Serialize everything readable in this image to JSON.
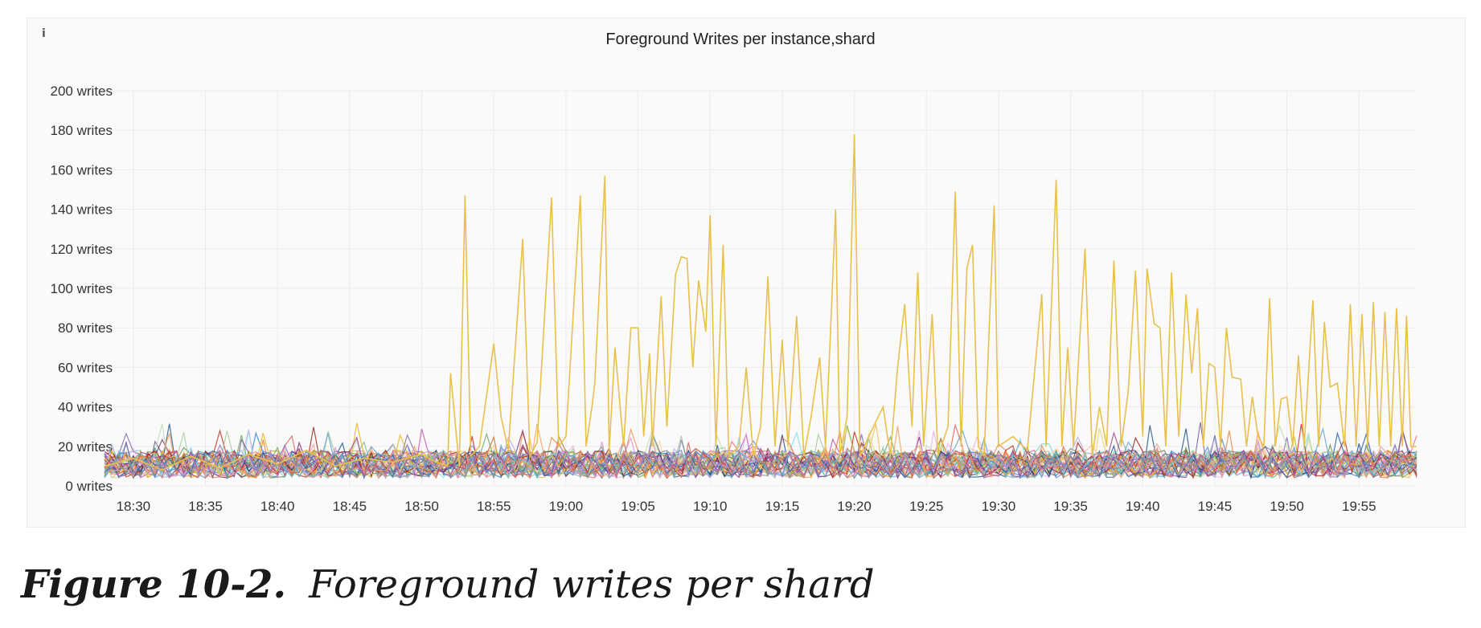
{
  "panel": {
    "info_icon": "info-icon"
  },
  "chart_data": {
    "type": "line",
    "title": "Foreground Writes per instance,shard",
    "xlabel": "",
    "ylabel": "",
    "y_unit": "writes",
    "ylim": [
      0,
      200
    ],
    "yticks": [
      "0 writes",
      "20 writes",
      "40 writes",
      "60 writes",
      "80 writes",
      "100 writes",
      "120 writes",
      "140 writes",
      "160 writes",
      "180 writes",
      "200 writes"
    ],
    "xlim": [
      "18:28",
      "19:59"
    ],
    "xticks": [
      "18:30",
      "18:35",
      "18:40",
      "18:45",
      "18:50",
      "18:55",
      "19:00",
      "19:05",
      "19:10",
      "19:15",
      "19:20",
      "19:25",
      "19:30",
      "19:35",
      "19:40",
      "19:45",
      "19:50",
      "19:55"
    ],
    "grid": true,
    "legend": "none",
    "highlight_series": {
      "color": "#e8c14a",
      "points": [
        [
          "18:28",
          10
        ],
        [
          "18:30",
          14
        ],
        [
          "18:32",
          8
        ],
        [
          "18:34",
          15
        ],
        [
          "18:36",
          9
        ],
        [
          "18:38",
          16
        ],
        [
          "18:40",
          11
        ],
        [
          "18:42",
          18
        ],
        [
          "18:44",
          10
        ],
        [
          "18:46",
          14
        ],
        [
          "18:48",
          12
        ],
        [
          "18:50",
          16
        ],
        [
          "18:51",
          12
        ],
        [
          "18:51.8",
          10
        ],
        [
          "18:52",
          57
        ],
        [
          "18:52.6",
          10
        ],
        [
          "18:53",
          147
        ],
        [
          "18:53.4",
          15
        ],
        [
          "18:54",
          20
        ],
        [
          "18:55",
          72
        ],
        [
          "18:55.5",
          35
        ],
        [
          "18:56",
          18
        ],
        [
          "18:57",
          125
        ],
        [
          "18:57.5",
          15
        ],
        [
          "18:58",
          22
        ],
        [
          "18:59",
          146
        ],
        [
          "18:59.5",
          20
        ],
        [
          "19:00",
          25
        ],
        [
          "19:01",
          147
        ],
        [
          "19:01.4",
          20
        ],
        [
          "19:01.8",
          40
        ],
        [
          "19:02",
          52
        ],
        [
          "19:02.7",
          157
        ],
        [
          "19:03",
          18
        ],
        [
          "19:03.4",
          70
        ],
        [
          "19:04",
          20
        ],
        [
          "19:04.5",
          80
        ],
        [
          "19:05",
          80
        ],
        [
          "19:05.4",
          25
        ],
        [
          "19:05.8",
          67
        ],
        [
          "19:06",
          20
        ],
        [
          "19:06.6",
          96
        ],
        [
          "19:07",
          30
        ],
        [
          "19:07.6",
          107
        ],
        [
          "19:08",
          116
        ],
        [
          "19:08.4",
          115
        ],
        [
          "19:08.8",
          60
        ],
        [
          "19:09.2",
          104
        ],
        [
          "19:09.7",
          78
        ],
        [
          "19:10",
          137
        ],
        [
          "19:10.4",
          20
        ],
        [
          "19:10.9",
          122
        ],
        [
          "19:11.3",
          15
        ],
        [
          "19:12",
          20
        ],
        [
          "19:12.5",
          60
        ],
        [
          "19:13",
          15
        ],
        [
          "19:13.5",
          30
        ],
        [
          "19:14",
          106
        ],
        [
          "19:14.5",
          20
        ],
        [
          "19:15",
          74
        ],
        [
          "19:15.4",
          20
        ],
        [
          "19:16",
          86
        ],
        [
          "19:16.5",
          15
        ],
        [
          "19:17",
          35
        ],
        [
          "19:17.6",
          65
        ],
        [
          "19:18",
          20
        ],
        [
          "19:18.3",
          70
        ],
        [
          "19:18.7",
          140
        ],
        [
          "19:19",
          15
        ],
        [
          "19:19.5",
          35
        ],
        [
          "19:20",
          178
        ],
        [
          "19:20.4",
          15
        ],
        [
          "19:21",
          25
        ],
        [
          "19:22",
          40
        ],
        [
          "19:22.5",
          15
        ],
        [
          "19:23",
          60
        ],
        [
          "19:23.5",
          92
        ],
        [
          "19:24",
          30
        ],
        [
          "19:24.4",
          108
        ],
        [
          "19:24.8",
          20
        ],
        [
          "19:25.4",
          87
        ],
        [
          "19:25.8",
          15
        ],
        [
          "19:26.5",
          30
        ],
        [
          "19:27",
          149
        ],
        [
          "19:27.4",
          20
        ],
        [
          "19:27.8",
          110
        ],
        [
          "19:28.2",
          122
        ],
        [
          "19:28.6",
          20
        ],
        [
          "19:29",
          15
        ],
        [
          "19:29.7",
          142
        ],
        [
          "19:30",
          20
        ],
        [
          "19:31",
          25
        ],
        [
          "19:32",
          18
        ],
        [
          "19:33",
          97
        ],
        [
          "19:33.3",
          20
        ],
        [
          "19:34",
          155
        ],
        [
          "19:34.4",
          20
        ],
        [
          "19:34.8",
          70
        ],
        [
          "19:35.2",
          20
        ],
        [
          "19:36",
          120
        ],
        [
          "19:36.5",
          15
        ],
        [
          "19:37",
          40
        ],
        [
          "19:37.5",
          20
        ],
        [
          "19:38",
          114
        ],
        [
          "19:38.5",
          20
        ],
        [
          "19:39",
          48
        ],
        [
          "19:39.5",
          109
        ],
        [
          "19:40",
          25
        ],
        [
          "19:40.3",
          110
        ],
        [
          "19:40.8",
          82
        ],
        [
          "19:41.2",
          80
        ],
        [
          "19:41.6",
          20
        ],
        [
          "19:42",
          108
        ],
        [
          "19:42.5",
          25
        ],
        [
          "19:43",
          97
        ],
        [
          "19:43.4",
          57
        ],
        [
          "19:43.8",
          90
        ],
        [
          "19:44.2",
          20
        ],
        [
          "19:44.6",
          62
        ],
        [
          "19:45",
          60
        ],
        [
          "19:45.4",
          20
        ],
        [
          "19:45.8",
          80
        ],
        [
          "19:46.2",
          55
        ],
        [
          "19:46.8",
          54
        ],
        [
          "19:47.2",
          20
        ],
        [
          "19:47.6",
          45
        ],
        [
          "19:48",
          25
        ],
        [
          "19:48.4",
          20
        ],
        [
          "19:48.8",
          95
        ],
        [
          "19:49.2",
          20
        ],
        [
          "19:49.6",
          44
        ],
        [
          "19:50",
          45
        ],
        [
          "19:50.4",
          20
        ],
        [
          "19:50.8",
          66
        ],
        [
          "19:51.2",
          20
        ],
        [
          "19:51.8",
          94
        ],
        [
          "19:52.2",
          20
        ],
        [
          "19:52.6",
          83
        ],
        [
          "19:53",
          50
        ],
        [
          "19:53.5",
          52
        ],
        [
          "19:54",
          20
        ],
        [
          "19:54.4",
          92
        ],
        [
          "19:54.8",
          20
        ],
        [
          "19:55.2",
          87
        ],
        [
          "19:55.6",
          20
        ],
        [
          "19:56",
          93
        ],
        [
          "19:56.4",
          20
        ],
        [
          "19:56.8",
          88
        ],
        [
          "19:57.2",
          20
        ],
        [
          "19:57.6",
          90
        ],
        [
          "19:58",
          20
        ],
        [
          "19:58.3",
          86
        ],
        [
          "19:58.6",
          20
        ],
        [
          "19:59",
          20
        ]
      ]
    },
    "background_series_count": 40,
    "background_range": [
      0,
      40
    ]
  },
  "caption": {
    "label": "Figure 10-2.",
    "text": "Foreground writes per shard"
  }
}
